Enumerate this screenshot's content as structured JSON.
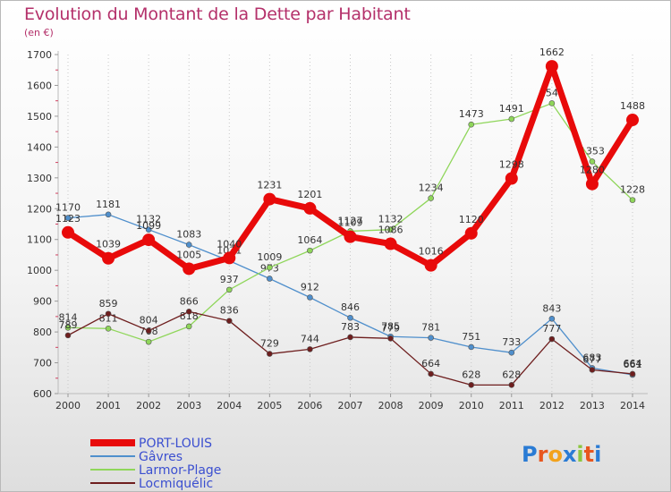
{
  "title": "Evolution du Montant de la Dette par Habitant",
  "unit": "(en €)",
  "brand": "Proxiti",
  "chart_data": {
    "type": "line",
    "title": "Evolution du Montant de la Dette par Habitant",
    "ylabel": "(en €)",
    "ylim": [
      600,
      1700
    ],
    "yticks": [
      600,
      700,
      800,
      900,
      1000,
      1100,
      1200,
      1300,
      1400,
      1500,
      1600,
      1700
    ],
    "grid": "dotted vertical",
    "legend": "bottom-left",
    "x": [
      "2000",
      "2001",
      "2002",
      "2003",
      "2004",
      "2005",
      "2006",
      "2007",
      "2008",
      "2009",
      "2010",
      "2011",
      "2012",
      "2013",
      "2014"
    ],
    "series": [
      {
        "name": "PORT-LOUIS",
        "color": "#e80a0a",
        "values": [
          1123,
          1039,
          1099,
          1005,
          1040,
          1231,
          1201,
          1109,
          1086,
          1016,
          1120,
          1298,
          1662,
          1280,
          1488
        ]
      },
      {
        "name": "Gâvres",
        "color": "#4f8fcc",
        "values": [
          1170,
          1181,
          1132,
          1083,
          1031,
          973,
          912,
          846,
          785,
          781,
          751,
          733,
          843,
          683,
          661
        ]
      },
      {
        "name": "Larmor-Plage",
        "color": "#8fd65a",
        "values": [
          814,
          811,
          768,
          818,
          937,
          1009,
          1064,
          1127,
          1132,
          1234,
          1473,
          1491,
          1542,
          1353,
          1228
        ]
      },
      {
        "name": "Locmiquélic",
        "color": "#6e1e1e",
        "values": [
          789,
          859,
          804,
          866,
          836,
          729,
          744,
          783,
          779,
          664,
          628,
          628,
          777,
          677,
          664
        ]
      }
    ]
  }
}
